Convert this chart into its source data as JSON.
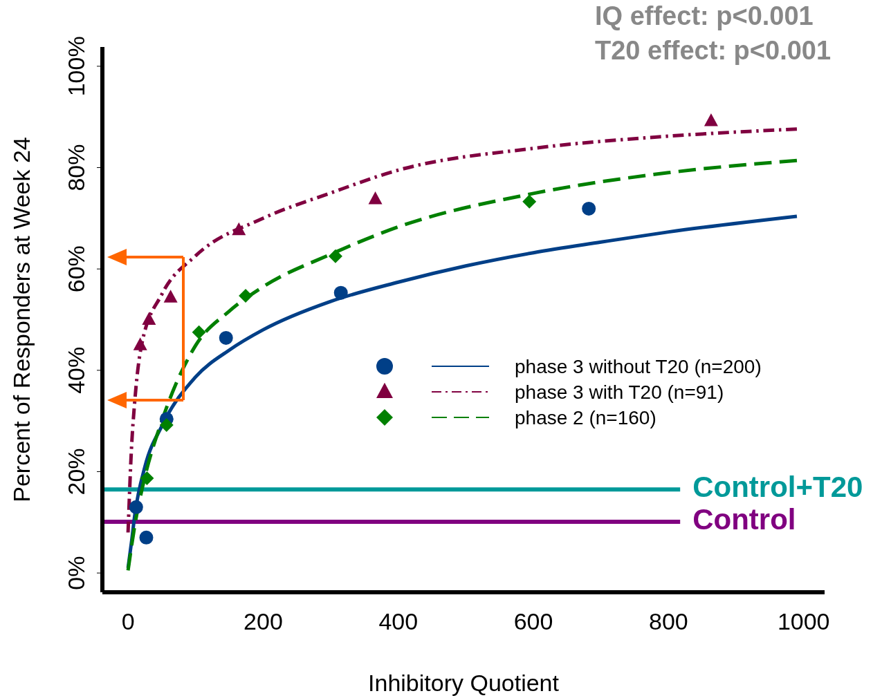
{
  "chart_data": {
    "type": "scatter",
    "xlabel": "Inhibitory Quotient",
    "ylabel": "Percent of Responders at Week 24",
    "xlim": [
      -38,
      1031
    ],
    "xticks": [
      0,
      200,
      400,
      600,
      800,
      1000
    ],
    "ylim": [
      -3.8,
      103.8
    ],
    "yticks": [
      {
        "value": 0,
        "label": "0%"
      },
      {
        "value": 20,
        "label": "20%"
      },
      {
        "value": 40,
        "label": "40%"
      },
      {
        "value": 60,
        "label": "60%"
      },
      {
        "value": 80,
        "label": "80%"
      },
      {
        "value": 100,
        "label": "100%"
      }
    ],
    "legend": "right",
    "annotations": [
      "IQ effect: p<0.001",
      "T20 effect: p<0.001"
    ],
    "ref_lines": [
      {
        "axis": "y",
        "value": 16.5,
        "label": "Control+T20",
        "color": "#009999"
      },
      {
        "axis": "y",
        "value": 10.1,
        "label": "Control",
        "color": "#800080"
      }
    ],
    "series": [
      {
        "type": "scatter",
        "name": "phase 3 without T20 (n=200)",
        "color": "#003f87",
        "marker": "circle",
        "x": [
          12,
          27,
          57,
          145,
          315,
          682
        ],
        "values": [
          13,
          7,
          30.4,
          46.4,
          55.3,
          71.9
        ]
      },
      {
        "type": "scatter",
        "name": "phase 3 with T20 (n=91)",
        "color": "#800040",
        "marker": "triangle",
        "x": [
          18,
          31,
          63,
          164,
          366,
          863
        ],
        "values": [
          45,
          50,
          54.4,
          67.7,
          73.8,
          89.2
        ]
      },
      {
        "type": "scatter",
        "name": "phase 2 (n=160)",
        "color": "#008000",
        "marker": "diamond",
        "x": [
          28,
          57,
          105,
          174,
          307,
          594
        ],
        "values": [
          18.7,
          29.2,
          47.5,
          54.7,
          62.5,
          73.3
        ]
      },
      {
        "type": "line",
        "color": "#003f87",
        "line_style": "solid",
        "marker": "none",
        "x": [
          0,
          5,
          10,
          25,
          50,
          100,
          150,
          200,
          300,
          400,
          500,
          600,
          700,
          800,
          990
        ],
        "values": [
          1,
          6,
          11.5,
          21,
          29,
          38.7,
          44,
          48,
          53.6,
          57.4,
          60.6,
          63.2,
          65.3,
          67.3,
          70.4
        ]
      },
      {
        "type": "line",
        "color": "#800040",
        "line_style": "dotted",
        "marker": "none",
        "x": [
          0,
          5,
          10,
          20,
          50,
          100,
          200,
          300,
          400,
          600,
          800,
          990
        ],
        "values": [
          8,
          24.4,
          34,
          45,
          55,
          62.6,
          70,
          75,
          79.5,
          83.8,
          86.2,
          87.6
        ]
      },
      {
        "type": "line",
        "color": "#008000",
        "line_style": "dashed",
        "marker": "none",
        "x": [
          0,
          10,
          25,
          50,
          100,
          150,
          200,
          300,
          400,
          600,
          800,
          990
        ],
        "values": [
          0.5,
          9.4,
          19,
          30,
          44.9,
          51.7,
          56.5,
          62.9,
          68.3,
          74.9,
          79,
          81.4
        ]
      }
    ]
  }
}
